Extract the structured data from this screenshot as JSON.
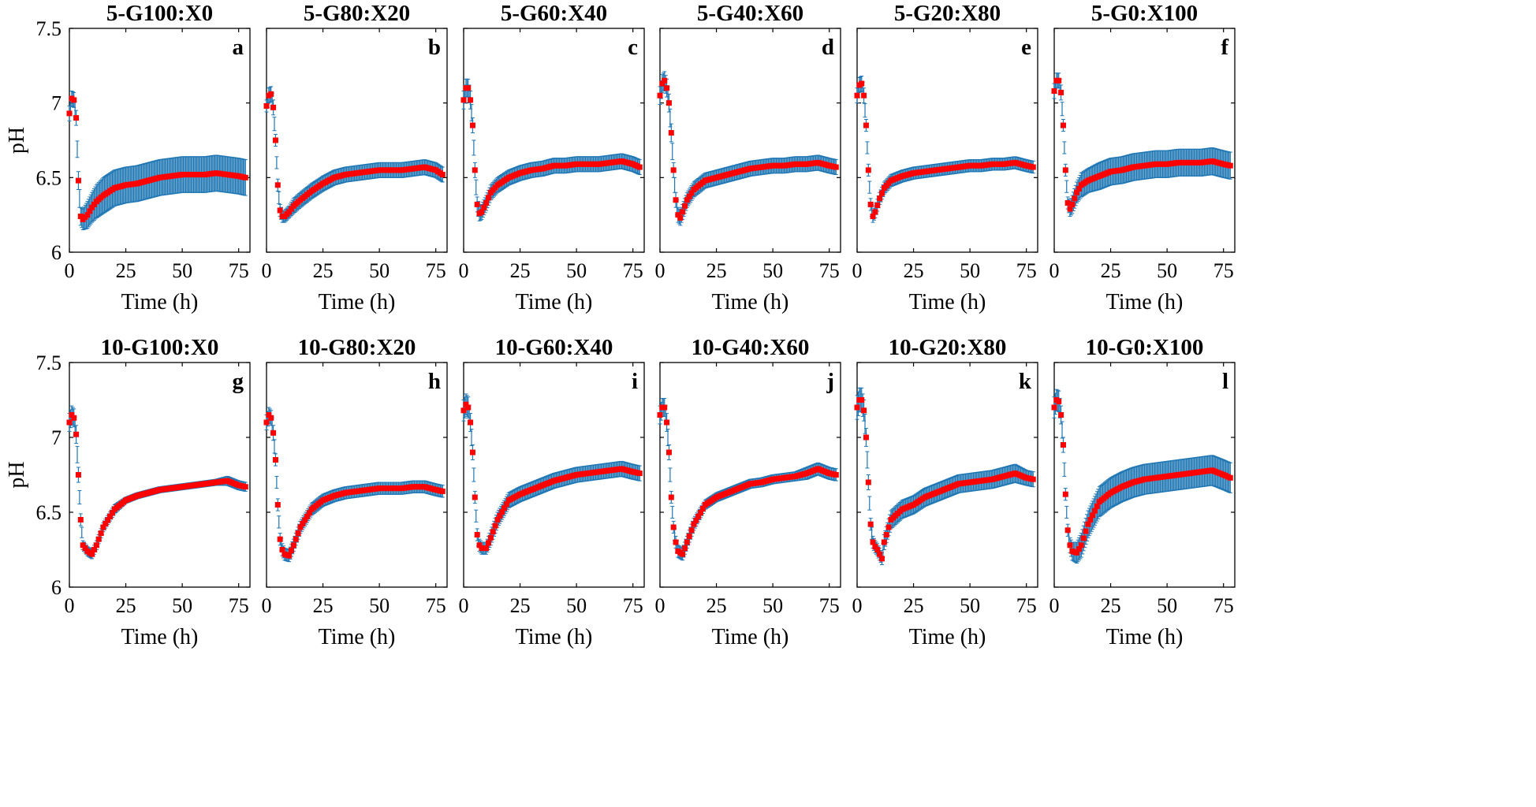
{
  "chart_data": [
    {
      "type": "line",
      "panel": "a",
      "title": "5-G100:X0",
      "xlabel": "Time (h)",
      "ylabel": "pH",
      "xlim": [
        0,
        80
      ],
      "ylim": [
        6,
        7.5
      ],
      "xticks": [
        "0",
        "25",
        "50",
        "75"
      ],
      "yticks": [
        "6",
        "6.5",
        "7",
        "7.5"
      ],
      "x": [
        0,
        1,
        2,
        3,
        4,
        5,
        6,
        8,
        10,
        12,
        15,
        20,
        25,
        30,
        35,
        40,
        45,
        50,
        55,
        60,
        65,
        70,
        75,
        78
      ],
      "y": [
        6.93,
        7.03,
        7.02,
        6.9,
        6.48,
        6.24,
        6.22,
        6.25,
        6.3,
        6.34,
        6.38,
        6.43,
        6.45,
        6.46,
        6.48,
        6.5,
        6.51,
        6.52,
        6.52,
        6.52,
        6.53,
        6.52,
        6.51,
        6.5
      ],
      "err": [
        0.05,
        0.05,
        0.05,
        0.05,
        0.06,
        0.06,
        0.07,
        0.09,
        0.1,
        0.11,
        0.12,
        0.12,
        0.12,
        0.12,
        0.12,
        0.12,
        0.12,
        0.12,
        0.12,
        0.12,
        0.12,
        0.12,
        0.12,
        0.12
      ]
    },
    {
      "type": "line",
      "panel": "b",
      "title": "5-G80:X20",
      "xlabel": "Time (h)",
      "ylabel": "",
      "xlim": [
        0,
        80
      ],
      "ylim": [
        6,
        7.5
      ],
      "xticks": [
        "0",
        "25",
        "50",
        "75"
      ],
      "yticks": [],
      "x": [
        0,
        1,
        2,
        3,
        4,
        5,
        6,
        7,
        8,
        10,
        12,
        15,
        20,
        25,
        30,
        35,
        40,
        45,
        50,
        55,
        60,
        65,
        70,
        75,
        78
      ],
      "y": [
        6.98,
        7.05,
        7.06,
        6.97,
        6.75,
        6.45,
        6.28,
        6.24,
        6.24,
        6.27,
        6.31,
        6.35,
        6.41,
        6.46,
        6.5,
        6.52,
        6.53,
        6.54,
        6.55,
        6.55,
        6.55,
        6.56,
        6.57,
        6.55,
        6.52
      ],
      "err": [
        0.04,
        0.05,
        0.05,
        0.05,
        0.04,
        0.04,
        0.04,
        0.04,
        0.04,
        0.04,
        0.05,
        0.05,
        0.05,
        0.05,
        0.05,
        0.05,
        0.05,
        0.05,
        0.05,
        0.05,
        0.05,
        0.05,
        0.05,
        0.05,
        0.05
      ]
    },
    {
      "type": "line",
      "panel": "c",
      "title": "5-G60:X40",
      "xlabel": "Time (h)",
      "ylabel": "",
      "xlim": [
        0,
        80
      ],
      "ylim": [
        6,
        7.5
      ],
      "xticks": [
        "0",
        "25",
        "50",
        "75"
      ],
      "yticks": [],
      "x": [
        0,
        1,
        2,
        3,
        4,
        5,
        6,
        7,
        8,
        10,
        12,
        15,
        20,
        25,
        30,
        35,
        40,
        45,
        50,
        55,
        60,
        65,
        70,
        75,
        78
      ],
      "y": [
        7.02,
        7.1,
        7.1,
        7.02,
        6.85,
        6.55,
        6.32,
        6.26,
        6.27,
        6.33,
        6.4,
        6.45,
        6.5,
        6.53,
        6.55,
        6.56,
        6.58,
        6.58,
        6.59,
        6.59,
        6.59,
        6.6,
        6.61,
        6.59,
        6.57
      ],
      "err": [
        0.06,
        0.06,
        0.06,
        0.06,
        0.05,
        0.05,
        0.05,
        0.05,
        0.05,
        0.05,
        0.05,
        0.05,
        0.05,
        0.05,
        0.05,
        0.05,
        0.05,
        0.05,
        0.05,
        0.05,
        0.05,
        0.05,
        0.05,
        0.05,
        0.05
      ]
    },
    {
      "type": "line",
      "panel": "d",
      "title": "5-G40:X60",
      "xlabel": "Time (h)",
      "ylabel": "",
      "xlim": [
        0,
        80
      ],
      "ylim": [
        6,
        7.5
      ],
      "xticks": [
        "0",
        "25",
        "50",
        "75"
      ],
      "yticks": [],
      "x": [
        0,
        1,
        2,
        3,
        4,
        5,
        6,
        7,
        8,
        9,
        10,
        12,
        15,
        20,
        25,
        30,
        35,
        40,
        45,
        50,
        55,
        60,
        65,
        70,
        75,
        78
      ],
      "y": [
        7.05,
        7.13,
        7.15,
        7.1,
        7.0,
        6.8,
        6.55,
        6.35,
        6.25,
        6.23,
        6.27,
        6.35,
        6.42,
        6.48,
        6.5,
        6.52,
        6.54,
        6.56,
        6.57,
        6.58,
        6.58,
        6.59,
        6.59,
        6.6,
        6.58,
        6.57
      ],
      "err": [
        0.06,
        0.06,
        0.06,
        0.06,
        0.06,
        0.06,
        0.05,
        0.05,
        0.05,
        0.05,
        0.05,
        0.05,
        0.05,
        0.05,
        0.05,
        0.05,
        0.05,
        0.05,
        0.05,
        0.05,
        0.05,
        0.05,
        0.05,
        0.05,
        0.05,
        0.05
      ]
    },
    {
      "type": "line",
      "panel": "e",
      "title": "5-G20:X80",
      "xlabel": "Time (h)",
      "ylabel": "",
      "xlim": [
        0,
        80
      ],
      "ylim": [
        6,
        7.5
      ],
      "xticks": [
        "0",
        "25",
        "50",
        "75"
      ],
      "yticks": [],
      "x": [
        0,
        1,
        2,
        3,
        4,
        5,
        6,
        7,
        8,
        10,
        12,
        15,
        20,
        25,
        30,
        35,
        40,
        45,
        50,
        55,
        60,
        65,
        70,
        75,
        78
      ],
      "y": [
        7.05,
        7.12,
        7.13,
        7.05,
        6.85,
        6.55,
        6.32,
        6.24,
        6.27,
        6.36,
        6.43,
        6.48,
        6.51,
        6.53,
        6.54,
        6.55,
        6.56,
        6.57,
        6.58,
        6.58,
        6.59,
        6.59,
        6.6,
        6.58,
        6.57
      ],
      "err": [
        0.05,
        0.05,
        0.05,
        0.05,
        0.04,
        0.04,
        0.04,
        0.04,
        0.04,
        0.04,
        0.04,
        0.04,
        0.04,
        0.04,
        0.04,
        0.04,
        0.04,
        0.04,
        0.04,
        0.04,
        0.04,
        0.04,
        0.04,
        0.04,
        0.04
      ]
    },
    {
      "type": "line",
      "panel": "f",
      "title": "5-G0:X100",
      "xlabel": "Time (h)",
      "ylabel": "",
      "xlim": [
        0,
        80
      ],
      "ylim": [
        6,
        7.5
      ],
      "xticks": [
        "0",
        "25",
        "50",
        "75"
      ],
      "yticks": [],
      "x": [
        0,
        1,
        2,
        3,
        4,
        5,
        6,
        7,
        8,
        10,
        12,
        15,
        20,
        25,
        30,
        35,
        40,
        45,
        50,
        55,
        60,
        65,
        70,
        75,
        78
      ],
      "y": [
        7.08,
        7.15,
        7.15,
        7.07,
        6.85,
        6.55,
        6.33,
        6.29,
        6.32,
        6.4,
        6.45,
        6.48,
        6.51,
        6.54,
        6.55,
        6.57,
        6.58,
        6.59,
        6.59,
        6.6,
        6.6,
        6.6,
        6.61,
        6.59,
        6.58
      ],
      "err": [
        0.05,
        0.05,
        0.05,
        0.05,
        0.04,
        0.04,
        0.04,
        0.05,
        0.06,
        0.07,
        0.08,
        0.08,
        0.09,
        0.09,
        0.09,
        0.09,
        0.09,
        0.09,
        0.09,
        0.09,
        0.09,
        0.09,
        0.09,
        0.09,
        0.09
      ]
    },
    {
      "type": "line",
      "panel": "g",
      "title": "10-G100:X0",
      "xlabel": "Time (h)",
      "ylabel": "pH",
      "xlim": [
        0,
        80
      ],
      "ylim": [
        6,
        7.5
      ],
      "xticks": [
        "0",
        "25",
        "50",
        "75"
      ],
      "yticks": [
        "6",
        "6.5",
        "7",
        "7.5"
      ],
      "x": [
        0,
        1,
        2,
        3,
        4,
        5,
        6,
        8,
        10,
        12,
        15,
        20,
        25,
        30,
        35,
        40,
        45,
        50,
        55,
        60,
        65,
        70,
        75,
        78
      ],
      "y": [
        7.1,
        7.15,
        7.13,
        7.02,
        6.75,
        6.45,
        6.28,
        6.24,
        6.22,
        6.28,
        6.4,
        6.52,
        6.58,
        6.61,
        6.63,
        6.65,
        6.66,
        6.67,
        6.68,
        6.69,
        6.7,
        6.71,
        6.68,
        6.67
      ],
      "err": [
        0.06,
        0.06,
        0.06,
        0.06,
        0.05,
        0.04,
        0.03,
        0.03,
        0.03,
        0.03,
        0.03,
        0.03,
        0.02,
        0.02,
        0.02,
        0.02,
        0.02,
        0.02,
        0.02,
        0.02,
        0.02,
        0.03,
        0.03,
        0.03
      ]
    },
    {
      "type": "line",
      "panel": "h",
      "title": "10-G80:X20",
      "xlabel": "Time (h)",
      "ylabel": "",
      "xlim": [
        0,
        80
      ],
      "ylim": [
        6,
        7.5
      ],
      "xticks": [
        "0",
        "25",
        "50",
        "75"
      ],
      "yticks": [],
      "x": [
        0,
        1,
        2,
        3,
        4,
        5,
        6,
        7,
        8,
        10,
        12,
        15,
        20,
        25,
        30,
        35,
        40,
        45,
        50,
        55,
        60,
        65,
        70,
        75,
        78
      ],
      "y": [
        7.1,
        7.15,
        7.13,
        7.03,
        6.85,
        6.55,
        6.32,
        6.25,
        6.22,
        6.21,
        6.28,
        6.4,
        6.52,
        6.58,
        6.61,
        6.63,
        6.64,
        6.65,
        6.66,
        6.66,
        6.66,
        6.67,
        6.67,
        6.65,
        6.64
      ],
      "err": [
        0.05,
        0.05,
        0.05,
        0.05,
        0.04,
        0.04,
        0.04,
        0.04,
        0.04,
        0.04,
        0.04,
        0.04,
        0.04,
        0.04,
        0.04,
        0.04,
        0.04,
        0.04,
        0.04,
        0.04,
        0.04,
        0.04,
        0.04,
        0.04,
        0.04
      ]
    },
    {
      "type": "line",
      "panel": "i",
      "title": "10-G60:X40",
      "xlabel": "Time (h)",
      "ylabel": "",
      "xlim": [
        0,
        80
      ],
      "ylim": [
        6,
        7.5
      ],
      "xticks": [
        "0",
        "25",
        "50",
        "75"
      ],
      "yticks": [],
      "x": [
        0,
        1,
        2,
        3,
        4,
        5,
        6,
        7,
        8,
        10,
        12,
        15,
        20,
        25,
        30,
        35,
        40,
        45,
        50,
        55,
        60,
        65,
        70,
        75,
        78
      ],
      "y": [
        7.18,
        7.22,
        7.2,
        7.1,
        6.9,
        6.6,
        6.35,
        6.28,
        6.26,
        6.26,
        6.33,
        6.45,
        6.58,
        6.62,
        6.65,
        6.68,
        6.71,
        6.73,
        6.75,
        6.76,
        6.77,
        6.78,
        6.79,
        6.77,
        6.76
      ],
      "err": [
        0.07,
        0.07,
        0.07,
        0.06,
        0.05,
        0.04,
        0.04,
        0.04,
        0.04,
        0.04,
        0.05,
        0.05,
        0.05,
        0.05,
        0.05,
        0.05,
        0.05,
        0.05,
        0.05,
        0.05,
        0.05,
        0.05,
        0.05,
        0.05,
        0.05
      ]
    },
    {
      "type": "line",
      "panel": "j",
      "title": "10-G40:X60",
      "xlabel": "Time (h)",
      "ylabel": "",
      "xlim": [
        0,
        80
      ],
      "ylim": [
        6,
        7.5
      ],
      "xticks": [
        "0",
        "25",
        "50",
        "75"
      ],
      "yticks": [],
      "x": [
        0,
        1,
        2,
        3,
        4,
        5,
        6,
        7,
        8,
        10,
        12,
        15,
        20,
        25,
        30,
        35,
        40,
        45,
        50,
        55,
        60,
        65,
        70,
        75,
        78
      ],
      "y": [
        7.15,
        7.2,
        7.2,
        7.1,
        6.9,
        6.6,
        6.4,
        6.3,
        6.24,
        6.22,
        6.3,
        6.42,
        6.55,
        6.6,
        6.63,
        6.66,
        6.69,
        6.7,
        6.72,
        6.73,
        6.74,
        6.76,
        6.79,
        6.76,
        6.75
      ],
      "err": [
        0.06,
        0.06,
        0.06,
        0.06,
        0.05,
        0.04,
        0.04,
        0.04,
        0.04,
        0.04,
        0.04,
        0.04,
        0.03,
        0.03,
        0.03,
        0.03,
        0.03,
        0.03,
        0.03,
        0.03,
        0.03,
        0.04,
        0.04,
        0.04,
        0.04
      ]
    },
    {
      "type": "line",
      "panel": "k",
      "title": "10-G20:X80",
      "xlabel": "Time (h)",
      "ylabel": "",
      "xlim": [
        0,
        80
      ],
      "ylim": [
        6,
        7.5
      ],
      "xticks": [
        "0",
        "25",
        "50",
        "75"
      ],
      "yticks": [],
      "x": [
        0,
        1,
        2,
        3,
        4,
        5,
        6,
        7,
        8,
        9,
        10,
        11,
        12,
        15,
        20,
        25,
        30,
        35,
        40,
        45,
        50,
        55,
        60,
        65,
        70,
        75,
        78
      ],
      "y": [
        7.2,
        7.25,
        7.25,
        7.18,
        7.0,
        6.7,
        6.42,
        6.3,
        6.27,
        6.25,
        6.22,
        6.19,
        6.3,
        6.45,
        6.52,
        6.55,
        6.6,
        6.63,
        6.66,
        6.69,
        6.7,
        6.71,
        6.72,
        6.74,
        6.76,
        6.73,
        6.72
      ],
      "err": [
        0.08,
        0.08,
        0.08,
        0.07,
        0.06,
        0.05,
        0.04,
        0.04,
        0.04,
        0.04,
        0.04,
        0.04,
        0.05,
        0.06,
        0.06,
        0.06,
        0.06,
        0.06,
        0.06,
        0.06,
        0.06,
        0.06,
        0.06,
        0.06,
        0.06,
        0.05,
        0.05
      ]
    },
    {
      "type": "line",
      "panel": "l",
      "title": "10-G0:X100",
      "xlabel": "Time (h)",
      "ylabel": "",
      "xlim": [
        0,
        80
      ],
      "ylim": [
        6,
        7.5
      ],
      "xticks": [
        "0",
        "25",
        "50",
        "75"
      ],
      "yticks": [],
      "x": [
        0,
        1,
        2,
        3,
        4,
        5,
        6,
        7,
        8,
        10,
        12,
        15,
        20,
        25,
        30,
        35,
        40,
        45,
        50,
        55,
        60,
        65,
        70,
        75,
        78
      ],
      "y": [
        7.2,
        7.25,
        7.24,
        7.15,
        6.95,
        6.62,
        6.38,
        6.28,
        6.24,
        6.23,
        6.28,
        6.42,
        6.57,
        6.63,
        6.67,
        6.7,
        6.72,
        6.73,
        6.74,
        6.75,
        6.76,
        6.77,
        6.78,
        6.75,
        6.73
      ],
      "err": [
        0.07,
        0.07,
        0.07,
        0.06,
        0.05,
        0.04,
        0.04,
        0.05,
        0.06,
        0.07,
        0.08,
        0.09,
        0.1,
        0.1,
        0.1,
        0.1,
        0.1,
        0.1,
        0.1,
        0.1,
        0.1,
        0.1,
        0.1,
        0.1,
        0.1
      ]
    }
  ],
  "colors": {
    "errorbar": "#1f77b4",
    "mean": "#ff0000",
    "axis": "#000000"
  }
}
